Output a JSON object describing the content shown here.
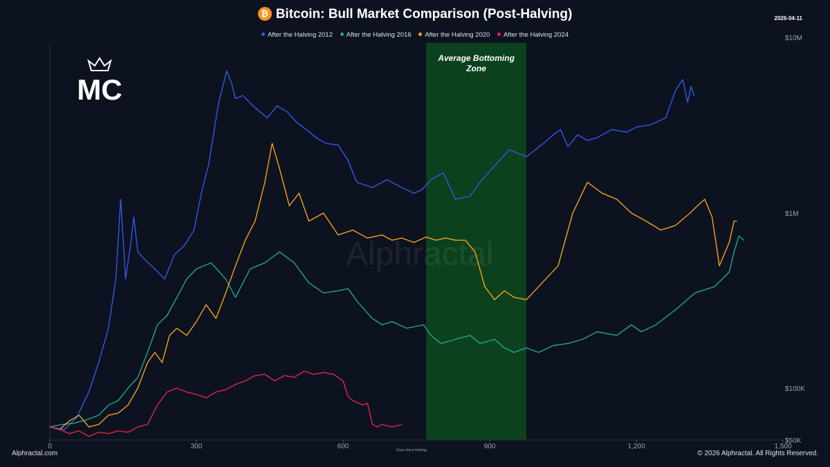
{
  "header": {
    "title": "Bitcoin: Bull Market Comparison (Post-Halving)",
    "btc_symbol": "₿",
    "date": "2026-04-11"
  },
  "footer": {
    "left": "Alphractal.com",
    "right": "© 2026 Alphractal. All Rights Reserved."
  },
  "watermark": "Alphractal",
  "logo_letters": "MC",
  "chart_data": {
    "type": "line",
    "title": "Bitcoin: Bull Market Comparison (Post-Halving)",
    "xlabel": "Days Since Halving",
    "ylabel": "",
    "y_scale": "log",
    "xlim": [
      0,
      1500
    ],
    "ylim": [
      50000,
      10000000
    ],
    "x_ticks": [
      0,
      300,
      600,
      900,
      1200,
      1500
    ],
    "x_tick_labels": [
      "0",
      "300",
      "600",
      "900",
      "1,200",
      "1,500"
    ],
    "y_ticks": [
      50000,
      100000,
      1000000,
      10000000
    ],
    "y_tick_labels": [
      "$50K",
      "$100K",
      "$1M",
      "$10M"
    ],
    "band": {
      "label_line1": "Average Bottoming",
      "label_line2": "Zone",
      "x_start": 770,
      "x_end": 975,
      "color": "#0d4a1f"
    },
    "series": [
      {
        "name": "After the Halving 2012",
        "color": "#2f5be6",
        "x": [
          0,
          30,
          55,
          80,
          100,
          120,
          135,
          145,
          155,
          165,
          172,
          180,
          195,
          215,
          235,
          255,
          275,
          295,
          310,
          325,
          345,
          362,
          372,
          380,
          395,
          420,
          445,
          465,
          485,
          505,
          525,
          545,
          565,
          590,
          610,
          628,
          660,
          690,
          720,
          745,
          760,
          780,
          805,
          830,
          860,
          880,
          905,
          940,
          975,
          1010,
          1030,
          1045,
          1060,
          1080,
          1100,
          1120,
          1150,
          1180,
          1200,
          1230,
          1260,
          1280,
          1295,
          1305,
          1312,
          1318
        ],
        "values": [
          60000,
          58000,
          68000,
          95000,
          140000,
          220000,
          420000,
          1200000,
          420000,
          650000,
          950000,
          600000,
          540000,
          480000,
          420000,
          580000,
          650000,
          800000,
          1300000,
          1900000,
          4200000,
          6500000,
          5500000,
          4500000,
          4700000,
          4000000,
          3500000,
          4100000,
          3800000,
          3300000,
          3000000,
          2700000,
          2500000,
          2450000,
          2000000,
          1500000,
          1400000,
          1550000,
          1400000,
          1300000,
          1350000,
          1550000,
          1700000,
          1200000,
          1250000,
          1500000,
          1800000,
          2300000,
          2100000,
          2500000,
          2800000,
          3000000,
          2400000,
          2800000,
          2600000,
          2700000,
          3000000,
          2900000,
          3100000,
          3200000,
          3500000,
          5000000,
          5800000,
          4300000,
          5300000,
          4700000
        ]
      },
      {
        "name": "After the Halving 2016",
        "color": "#1ea98a",
        "x": [
          0,
          25,
          50,
          75,
          100,
          120,
          140,
          160,
          180,
          200,
          220,
          240,
          260,
          280,
          300,
          330,
          360,
          380,
          410,
          440,
          470,
          500,
          530,
          560,
          590,
          610,
          630,
          660,
          680,
          700,
          730,
          765,
          780,
          800,
          830,
          860,
          880,
          910,
          930,
          950,
          975,
          1000,
          1030,
          1060,
          1090,
          1120,
          1160,
          1190,
          1210,
          1240,
          1280,
          1320,
          1360,
          1390,
          1400,
          1410,
          1420
        ],
        "values": [
          60000,
          62000,
          63000,
          66000,
          70000,
          80000,
          85000,
          100000,
          115000,
          160000,
          230000,
          260000,
          330000,
          420000,
          480000,
          520000,
          420000,
          330000,
          480000,
          520000,
          600000,
          520000,
          400000,
          350000,
          360000,
          370000,
          310000,
          250000,
          230000,
          240000,
          220000,
          230000,
          200000,
          180000,
          190000,
          200000,
          180000,
          190000,
          170000,
          160000,
          170000,
          160000,
          175000,
          180000,
          190000,
          210000,
          200000,
          230000,
          210000,
          230000,
          280000,
          350000,
          380000,
          460000,
          600000,
          740000,
          700000
        ]
      },
      {
        "name": "After the Halving 2020",
        "color": "#f2a51a",
        "x": [
          0,
          20,
          40,
          60,
          80,
          100,
          120,
          140,
          160,
          180,
          200,
          215,
          230,
          245,
          260,
          280,
          300,
          320,
          340,
          360,
          380,
          400,
          420,
          440,
          455,
          470,
          490,
          510,
          530,
          560,
          590,
          620,
          650,
          680,
          700,
          720,
          745,
          770,
          790,
          810,
          830,
          850,
          870,
          890,
          910,
          930,
          950,
          975,
          1000,
          1040,
          1070,
          1100,
          1130,
          1160,
          1190,
          1220,
          1250,
          1280,
          1310,
          1325,
          1340,
          1355,
          1370,
          1390,
          1400,
          1405
        ],
        "values": [
          60000,
          58000,
          65000,
          70000,
          60000,
          62000,
          70000,
          72000,
          80000,
          100000,
          140000,
          160000,
          140000,
          200000,
          220000,
          200000,
          240000,
          300000,
          250000,
          350000,
          500000,
          700000,
          900000,
          1500000,
          2500000,
          1800000,
          1100000,
          1300000,
          900000,
          1000000,
          750000,
          800000,
          720000,
          750000,
          700000,
          720000,
          680000,
          730000,
          700000,
          720000,
          700000,
          700000,
          600000,
          380000,
          320000,
          360000,
          330000,
          320000,
          380000,
          500000,
          1000000,
          1500000,
          1300000,
          1200000,
          1000000,
          900000,
          800000,
          850000,
          1000000,
          1100000,
          1200000,
          950000,
          500000,
          680000,
          900000,
          900000
        ]
      },
      {
        "name": "After the Halving 2024",
        "color": "#e0254a",
        "x": [
          0,
          20,
          40,
          60,
          80,
          100,
          120,
          140,
          160,
          180,
          200,
          220,
          240,
          260,
          280,
          300,
          320,
          340,
          360,
          380,
          400,
          420,
          440,
          460,
          480,
          500,
          520,
          540,
          560,
          580,
          600,
          610,
          620,
          640,
          650,
          660,
          670,
          680,
          700,
          720
        ],
        "values": [
          60000,
          58000,
          55000,
          57000,
          53000,
          56000,
          55000,
          57000,
          56000,
          60000,
          62000,
          80000,
          95000,
          100000,
          95000,
          92000,
          88000,
          95000,
          98000,
          105000,
          110000,
          118000,
          120000,
          110000,
          118000,
          115000,
          125000,
          120000,
          123000,
          120000,
          110000,
          90000,
          85000,
          80000,
          82000,
          62000,
          60000,
          62000,
          60000,
          62000
        ]
      }
    ]
  }
}
